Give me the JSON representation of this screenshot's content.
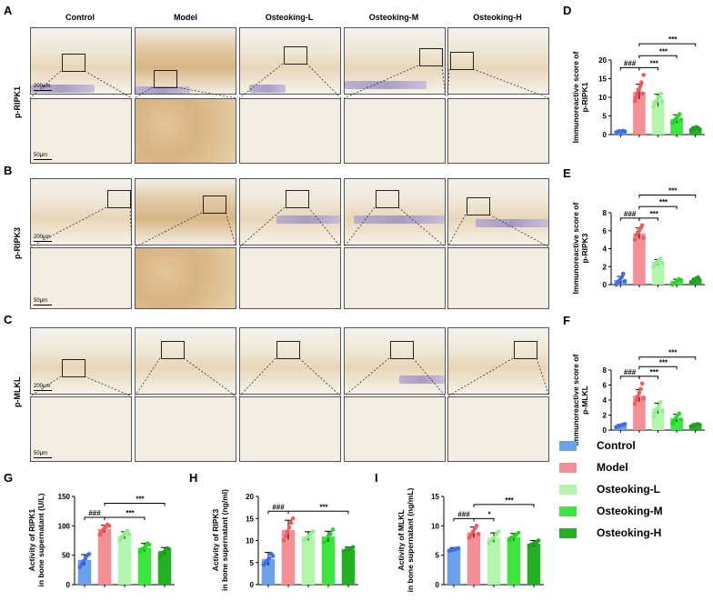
{
  "panel_letters": [
    "A",
    "B",
    "C",
    "D",
    "E",
    "F",
    "G",
    "H",
    "I"
  ],
  "column_headers": [
    "Control",
    "Model",
    "Osteoking-L",
    "Osteoking-M",
    "Osteoking-H"
  ],
  "row_labels": [
    "p-RIPK1",
    "p-RIPK3",
    "p-MLKL"
  ],
  "scale_labels": {
    "top": "200μm",
    "bottom": "50μm"
  },
  "groups": [
    "Control",
    "Model",
    "Osteoking-L",
    "Osteoking-M",
    "Osteoking-H"
  ],
  "colors": {
    "Control": "#3b6df0",
    "Model": "#f25b5b",
    "Osteoking-L": "#8ff08a",
    "Osteoking-M": "#22d822",
    "Osteoking-H": "#1fa11f"
  },
  "bar_fills": [
    "#6aa2ea",
    "#f48f95",
    "#b2f5ad",
    "#3fe53f",
    "#23b023"
  ],
  "chart_data": [
    {
      "id": "D",
      "type": "bar",
      "ylabel": "Immunoreactive score of\np-RIPK1",
      "ylim": [
        0,
        20
      ],
      "yticks": [
        0,
        5,
        10,
        15,
        20
      ],
      "values": [
        0.8,
        11.5,
        9.2,
        4.2,
        1.7
      ],
      "errors": [
        0.2,
        2.0,
        1.6,
        1.1,
        0.4
      ],
      "points": [
        [
          0.6,
          0.8,
          0.9,
          0.7,
          1.0,
          0.8
        ],
        [
          9,
          10,
          11,
          12,
          12,
          13,
          14,
          11,
          16
        ],
        [
          7.5,
          8.5,
          9,
          10,
          10,
          11,
          9
        ],
        [
          3,
          3.5,
          4,
          4.5,
          5,
          5.5,
          4
        ],
        [
          1.2,
          1.5,
          1.7,
          2,
          1.8,
          1.4
        ]
      ],
      "annotations": [
        "###",
        "***",
        "***",
        "***"
      ]
    },
    {
      "id": "E",
      "type": "bar",
      "ylabel": "Immunoreactive score of\np-RIPK3",
      "ylim": [
        0,
        8
      ],
      "yticks": [
        0,
        2,
        4,
        6,
        8
      ],
      "values": [
        0.5,
        5.7,
        2.5,
        0.4,
        0.5
      ],
      "errors": [
        0.4,
        0.6,
        0.3,
        0.2,
        0.2
      ],
      "points": [
        [
          0,
          0.3,
          0.5,
          0.8,
          1.2,
          0.4
        ],
        [
          5,
          5.5,
          5.8,
          6,
          6.3,
          6.6,
          5.2
        ],
        [
          2,
          2.3,
          2.5,
          2.7,
          2.9,
          2.4
        ],
        [
          0,
          0.2,
          0.4,
          0.6,
          0.5
        ],
        [
          0.2,
          0.4,
          0.5,
          0.7,
          0.8,
          0.5
        ]
      ],
      "annotations": [
        "###",
        "***",
        "***",
        "***"
      ]
    },
    {
      "id": "F",
      "type": "bar",
      "ylabel": "Immunoreactive score of\np-MLKL",
      "ylim": [
        0,
        8
      ],
      "yticks": [
        0,
        2,
        4,
        6,
        8
      ],
      "values": [
        0.6,
        4.6,
        2.9,
        1.6,
        0.7
      ],
      "errors": [
        0.15,
        0.8,
        0.7,
        0.5,
        0.15
      ],
      "points": [
        [
          0.4,
          0.5,
          0.6,
          0.7,
          0.8
        ],
        [
          3.5,
          4,
          4.5,
          5,
          5.5,
          6.2,
          4.2
        ],
        [
          1.8,
          2.3,
          2.8,
          3.2,
          3.7,
          2.6
        ],
        [
          0.9,
          1.2,
          1.6,
          2,
          2.2,
          1.4
        ],
        [
          0.5,
          0.6,
          0.7,
          0.8,
          0.7
        ]
      ],
      "annotations": [
        "###",
        "***",
        "***",
        "***"
      ]
    },
    {
      "id": "G",
      "type": "bar",
      "ylabel": "Activity of RIPK1\nin bone supernatant (U/L)",
      "ylim": [
        0,
        150
      ],
      "yticks": [
        0,
        50,
        100,
        150
      ],
      "values": [
        42,
        95,
        84,
        63,
        57
      ],
      "errors": [
        9,
        6,
        6,
        7,
        6
      ],
      "points": [
        [
          30,
          35,
          40,
          45,
          50,
          52
        ],
        [
          85,
          90,
          95,
          98,
          102,
          100
        ],
        [
          75,
          80,
          85,
          88,
          92,
          86
        ],
        [
          55,
          60,
          62,
          65,
          70,
          68
        ],
        [
          48,
          52,
          55,
          58,
          62,
          60
        ]
      ],
      "annotations": [
        "###",
        "***",
        "***"
      ]
    },
    {
      "id": "H",
      "type": "bar",
      "ylabel": "Activity of RIPK3\nin bone supernatant (ng/ml)",
      "ylim": [
        0,
        20
      ],
      "yticks": [
        0,
        5,
        10,
        15,
        20
      ],
      "values": [
        5.8,
        12.4,
        11.0,
        10.9,
        8.0
      ],
      "errors": [
        1.5,
        2.2,
        1.0,
        1.2,
        0.5
      ],
      "points": [
        [
          4.5,
          5,
          5.5,
          6,
          7,
          6.5
        ],
        [
          10,
          11,
          12,
          13,
          14,
          15
        ],
        [
          10,
          10.5,
          11,
          11.5,
          12
        ],
        [
          9.5,
          10,
          11,
          11.5,
          12.5
        ],
        [
          7.5,
          7.8,
          8,
          8.2,
          8.5
        ]
      ],
      "annotations": [
        "###",
        "***"
      ]
    },
    {
      "id": "I",
      "type": "bar",
      "ylabel": "Activity of MLKL\nin bone supernatant (ng/mL)",
      "ylim": [
        0,
        15
      ],
      "yticks": [
        0,
        5,
        10,
        15
      ],
      "values": [
        6.0,
        8.9,
        8.0,
        8.1,
        7.0
      ],
      "errors": [
        0.3,
        0.9,
        0.8,
        0.6,
        0.5
      ],
      "points": [
        [
          5.8,
          5.9,
          6,
          6.1,
          6.2
        ],
        [
          8,
          8.5,
          9,
          9.5,
          10,
          8.6
        ],
        [
          7,
          7.5,
          8,
          8.5,
          9
        ],
        [
          7.5,
          8,
          8.2,
          8.5,
          8.8
        ],
        [
          6.5,
          6.8,
          7,
          7.2,
          7.5
        ]
      ],
      "annotations": [
        "###",
        "*",
        "***"
      ]
    }
  ]
}
